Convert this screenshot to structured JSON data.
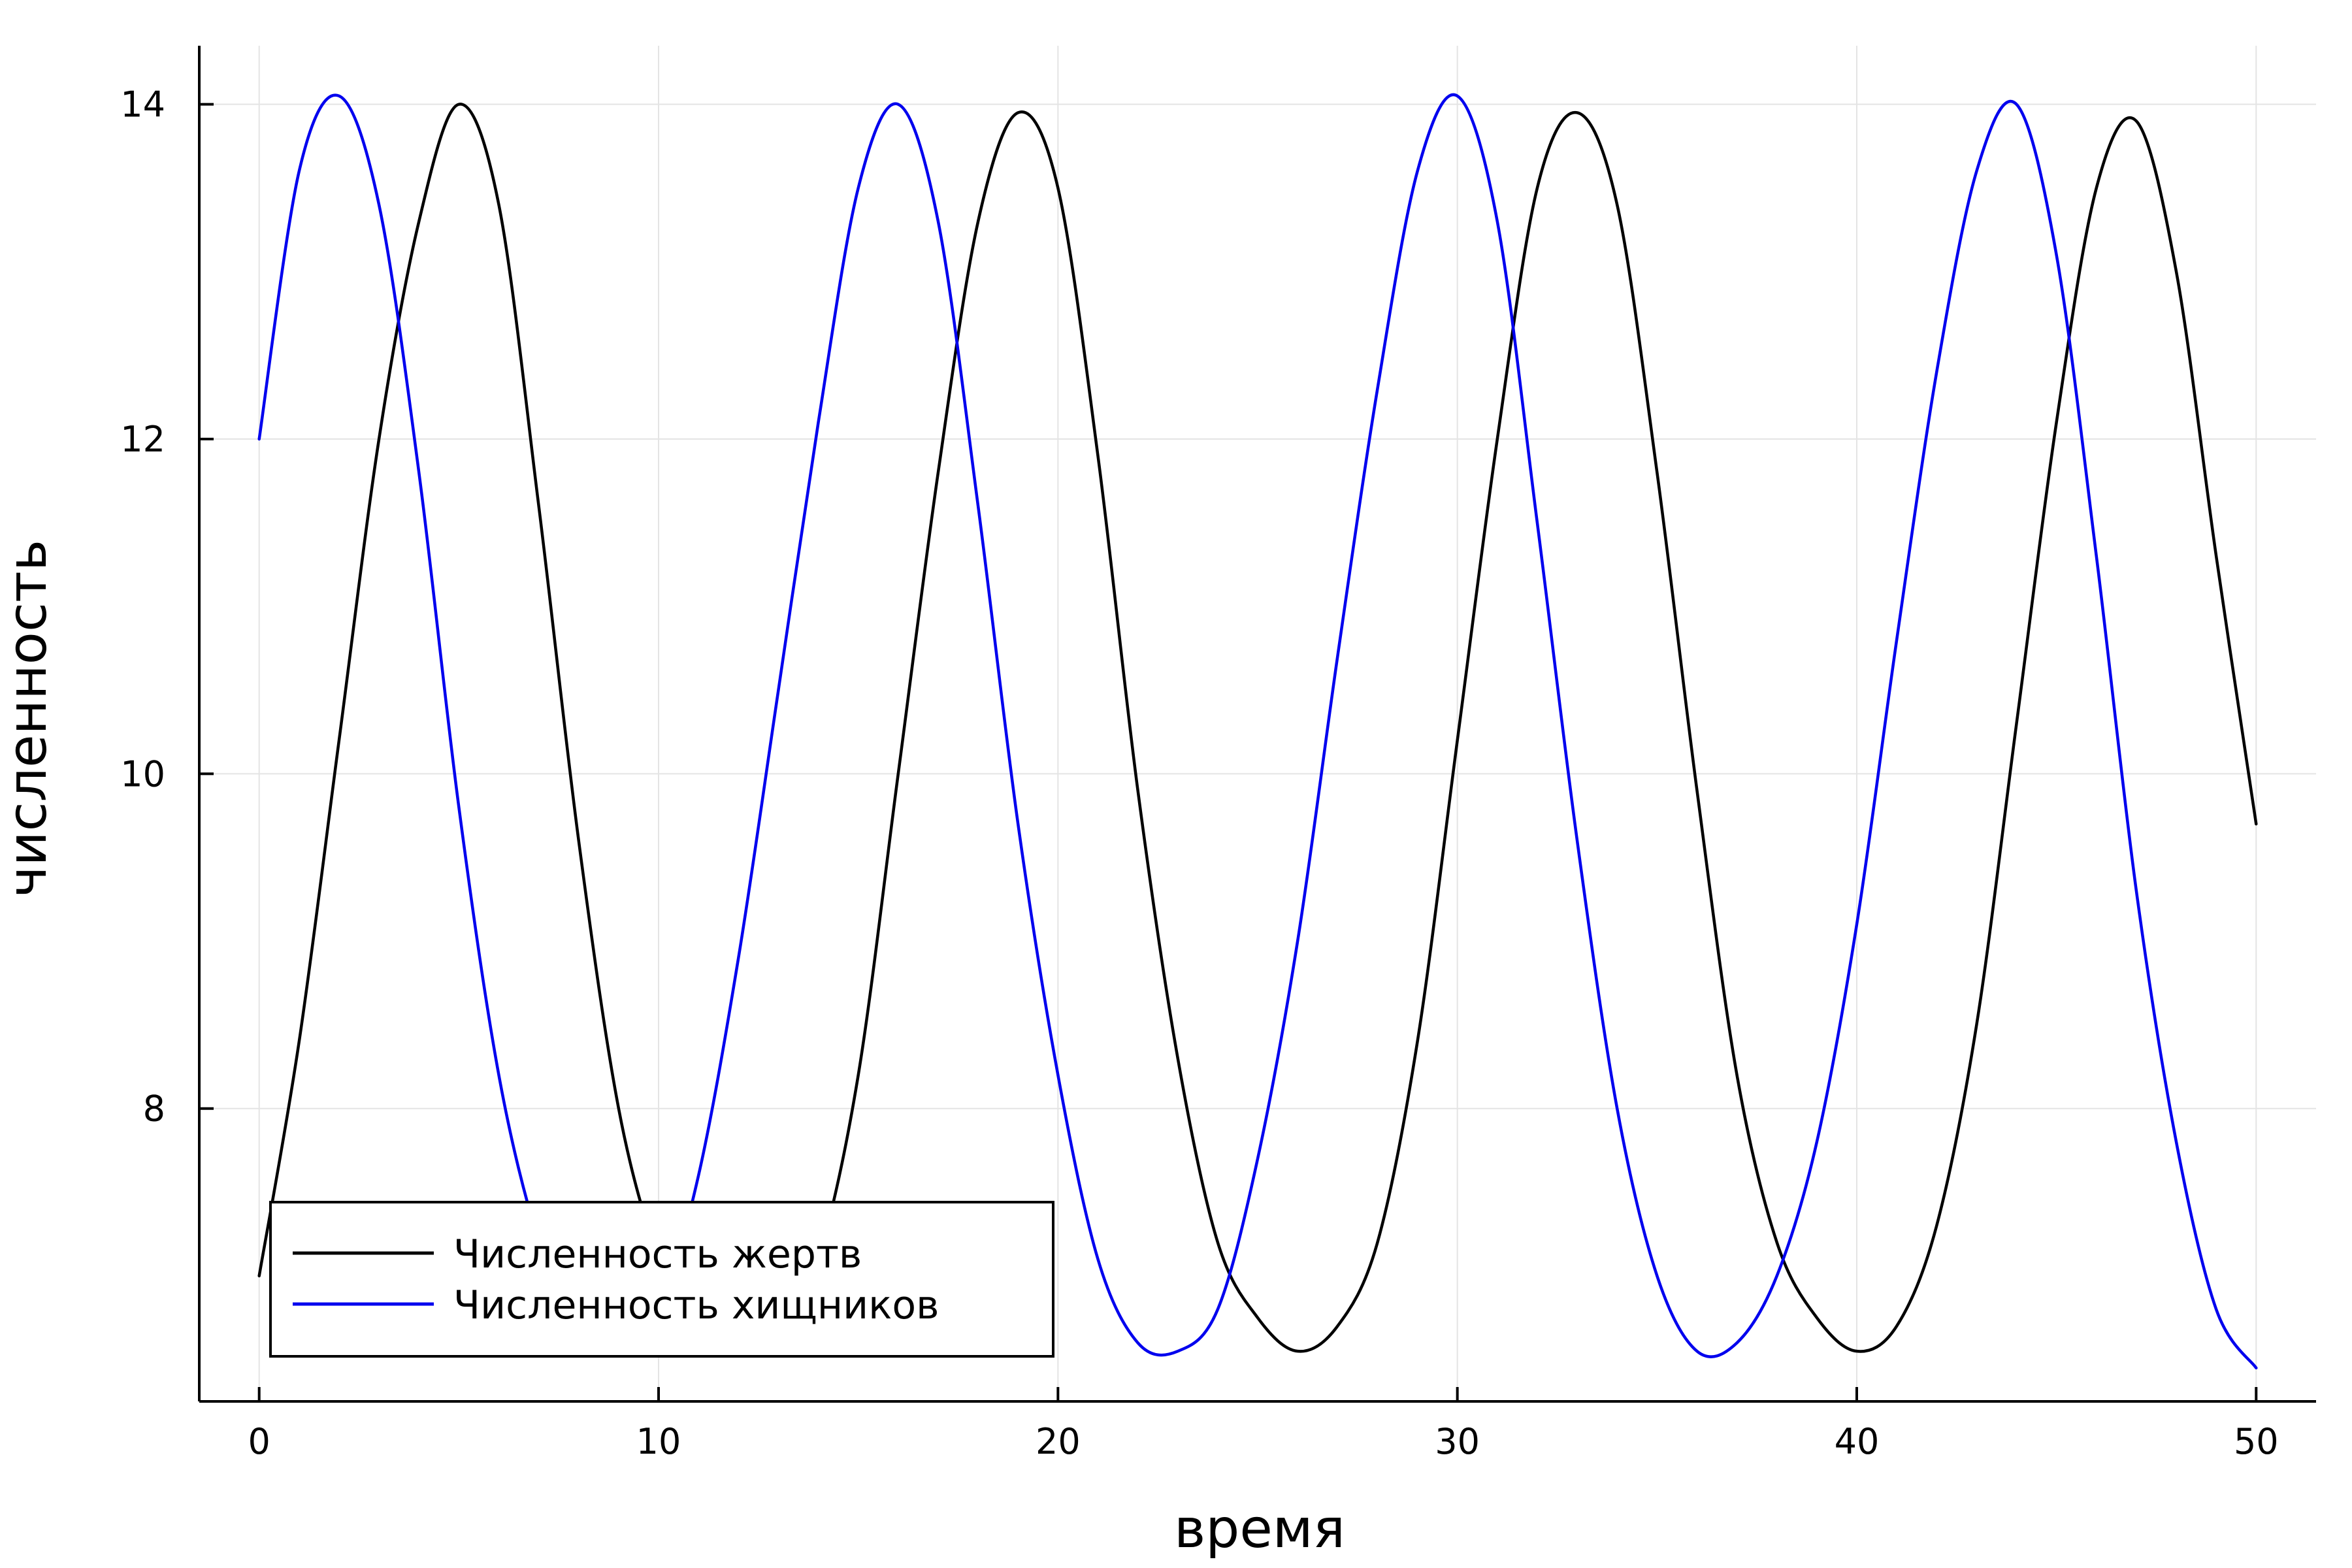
{
  "chart_data": {
    "type": "line",
    "title": "",
    "xlabel": "время",
    "ylabel": "численность",
    "xlim": [
      -1.5,
      51.5
    ],
    "ylim": [
      6.25,
      14.35
    ],
    "xticks": [
      0,
      10,
      20,
      30,
      40,
      50
    ],
    "yticks": [
      8,
      10,
      12,
      14
    ],
    "x_tick_labels": [
      "0",
      "10",
      "20",
      "30",
      "40",
      "50"
    ],
    "y_tick_labels": [
      "8",
      "10",
      "12",
      "14"
    ],
    "grid": true,
    "legend_position": "bottom-left",
    "x": [
      0,
      1,
      2,
      3,
      4,
      5,
      6,
      7,
      8,
      9,
      10,
      11,
      12,
      13,
      14,
      15,
      16,
      17,
      18,
      19,
      20,
      21,
      22,
      23,
      24,
      25,
      26,
      27,
      28,
      29,
      30,
      31,
      32,
      33,
      34,
      35,
      36,
      37,
      38,
      39,
      40,
      41,
      42,
      43,
      44,
      45,
      46,
      47,
      48,
      49,
      50
    ],
    "series": [
      {
        "name": "Численность жертв",
        "color": "#000000",
        "values": [
          7.0,
          8.4,
          10.2,
          12.0,
          13.3,
          14.0,
          13.4,
          11.6,
          9.6,
          8.0,
          7.1,
          6.6,
          6.55,
          6.6,
          7.1,
          8.2,
          10.0,
          11.8,
          13.3,
          13.95,
          13.5,
          11.9,
          9.9,
          8.3,
          7.2,
          6.75,
          6.55,
          6.7,
          7.2,
          8.4,
          10.2,
          12.0,
          13.5,
          13.95,
          13.4,
          11.8,
          9.9,
          8.2,
          7.2,
          6.75,
          6.55,
          6.7,
          7.3,
          8.5,
          10.3,
          12.1,
          13.5,
          13.9,
          13.0,
          11.3,
          9.7
        ]
      },
      {
        "name": "Численность хищников",
        "color": "#0000ee",
        "values": [
          12.0,
          13.6,
          14.05,
          13.4,
          11.8,
          9.8,
          8.2,
          7.2,
          6.6,
          6.55,
          6.8,
          7.6,
          8.9,
          10.5,
          12.1,
          13.5,
          14.0,
          13.3,
          11.6,
          9.7,
          8.2,
          7.1,
          6.6,
          6.55,
          6.8,
          7.7,
          9.0,
          10.7,
          12.3,
          13.6,
          14.05,
          13.3,
          11.5,
          9.6,
          8.0,
          7.0,
          6.55,
          6.6,
          7.0,
          7.8,
          9.1,
          10.8,
          12.4,
          13.6,
          14.0,
          13.1,
          11.3,
          9.3,
          7.8,
          6.8,
          6.45
        ]
      }
    ]
  }
}
